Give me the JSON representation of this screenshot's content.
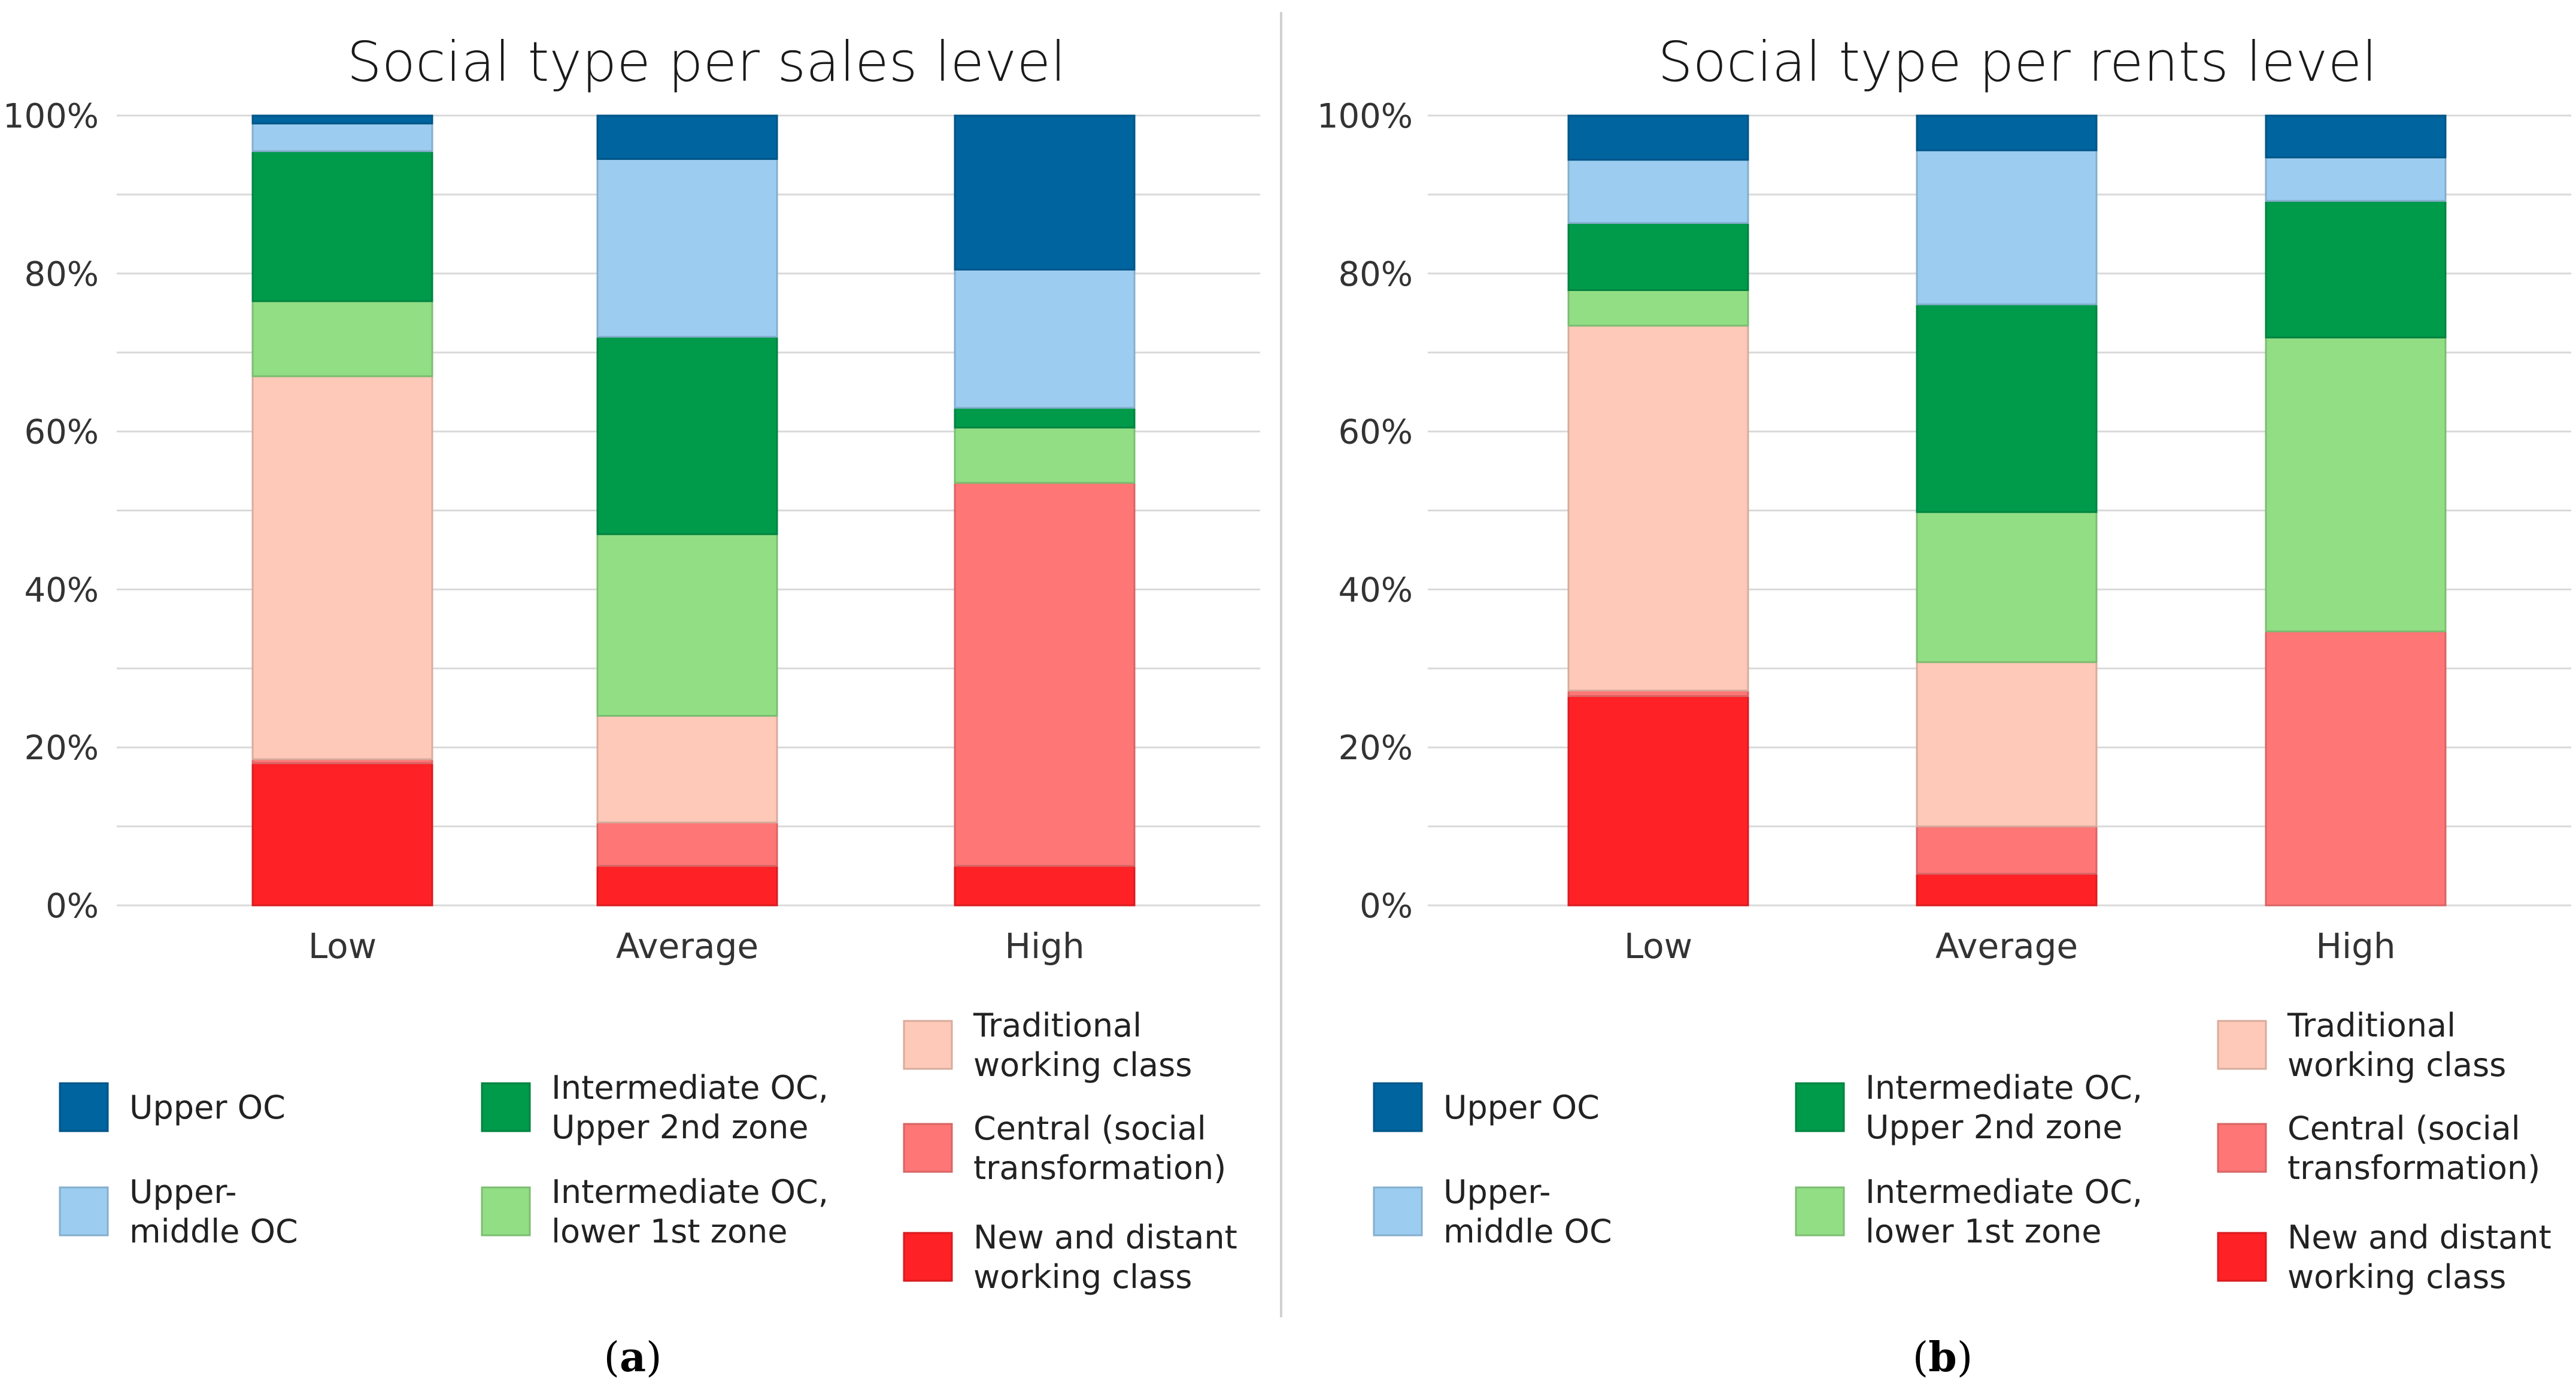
{
  "colors": {
    "upper_oc": "#00649f",
    "upper_middle_oc": "#9ccdf0",
    "intermediate_upper": "#009a4b",
    "intermediate_lower": "#92de85",
    "traditional_wc": "#fec9b8",
    "central": "#fe7676",
    "new_distant_wc": "#fe2126",
    "grid": "#d9d9d9",
    "divider": "#d0d0d0"
  },
  "legend": [
    {
      "key": "upper_oc",
      "lines": [
        "Upper OC"
      ]
    },
    {
      "key": "upper_middle_oc",
      "lines": [
        "Upper-",
        "middle OC"
      ]
    },
    {
      "key": "intermediate_upper",
      "lines": [
        "Intermediate OC,",
        "Upper 2nd zone"
      ]
    },
    {
      "key": "intermediate_lower",
      "lines": [
        "Intermediate OC,",
        "lower 1st zone"
      ]
    },
    {
      "key": "traditional_wc",
      "lines": [
        "Traditional",
        "working class"
      ]
    },
    {
      "key": "central",
      "lines": [
        "Central (social",
        "transformation)"
      ]
    },
    {
      "key": "new_distant_wc",
      "lines": [
        "New and distant",
        "working class"
      ]
    }
  ],
  "chart_data": [
    {
      "type": "bar",
      "stacked": true,
      "title": "Social type per sales level",
      "panel_label": "a",
      "categories": [
        "Low",
        "Average",
        "High"
      ],
      "y_tick_labels": [
        "0%",
        "20%",
        "40%",
        "60%",
        "80%",
        "100%"
      ],
      "ylim": [
        0,
        100
      ],
      "grid": true,
      "series": [
        {
          "name": "New and distant working class",
          "key": "new_distant_wc",
          "values": [
            18,
            5,
            5
          ]
        },
        {
          "name": "Central (social transformation)",
          "key": "central",
          "values": [
            0.5,
            5.5,
            48.5
          ]
        },
        {
          "name": "Traditional working class",
          "key": "traditional_wc",
          "values": [
            48.5,
            13.5,
            0
          ]
        },
        {
          "name": "Intermediate OC, lower 1st zone",
          "key": "intermediate_lower",
          "values": [
            9.5,
            23,
            7
          ]
        },
        {
          "name": "Intermediate OC, Upper 2nd zone",
          "key": "intermediate_upper",
          "values": [
            19,
            25,
            2.5
          ]
        },
        {
          "name": "Upper-middle OC",
          "key": "upper_middle_oc",
          "values": [
            3.5,
            22.5,
            17.5
          ]
        },
        {
          "name": "Upper OC",
          "key": "upper_oc",
          "values": [
            1,
            5.5,
            19.5
          ]
        }
      ]
    },
    {
      "type": "bar",
      "stacked": true,
      "title": "Social type per rents level",
      "panel_label": "b",
      "categories": [
        "Low",
        "Average",
        "High"
      ],
      "y_tick_labels": [
        "0%",
        "20%",
        "40%",
        "60%",
        "80%",
        "100%"
      ],
      "ylim": [
        0,
        100
      ],
      "grid": true,
      "series": [
        {
          "name": "New and distant working class",
          "key": "new_distant_wc",
          "values": [
            26.5,
            4,
            0
          ]
        },
        {
          "name": "Central (social transformation)",
          "key": "central",
          "values": [
            0.7,
            6,
            34.7
          ]
        },
        {
          "name": "Traditional working class",
          "key": "traditional_wc",
          "values": [
            46.2,
            20.8,
            0
          ]
        },
        {
          "name": "Intermediate OC, lower 1st zone",
          "key": "intermediate_lower",
          "values": [
            4.5,
            19,
            37.2
          ]
        },
        {
          "name": "Intermediate OC, Upper 2nd zone",
          "key": "intermediate_upper",
          "values": [
            8.5,
            26.3,
            17.3
          ]
        },
        {
          "name": "Upper-middle OC",
          "key": "upper_middle_oc",
          "values": [
            8,
            19.5,
            5.5
          ]
        },
        {
          "name": "Upper OC",
          "key": "upper_oc",
          "values": [
            5.6,
            4.4,
            5.3
          ]
        }
      ]
    }
  ]
}
